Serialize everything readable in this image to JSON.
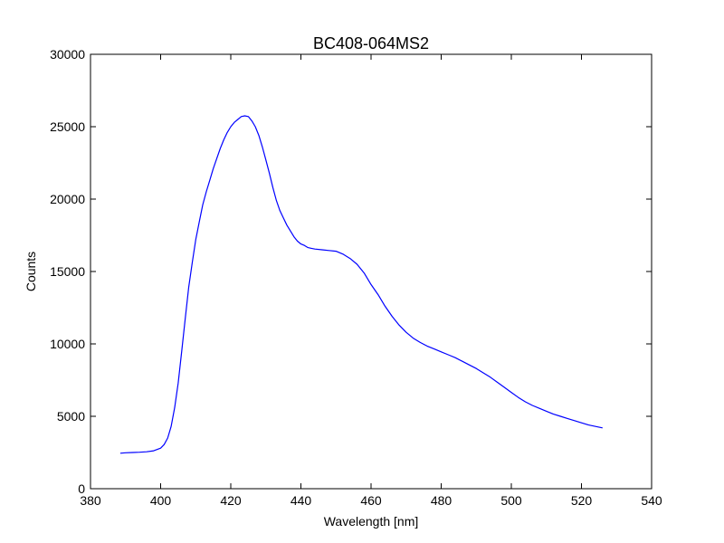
{
  "chart_data": {
    "type": "line",
    "title": "BC408-064MS2",
    "xlabel": "Wavelength [nm]",
    "ylabel": "Counts",
    "xlim": [
      380,
      540
    ],
    "ylim": [
      0,
      30000
    ],
    "xticks": [
      380,
      400,
      420,
      440,
      460,
      480,
      500,
      520,
      540
    ],
    "yticks": [
      0,
      5000,
      10000,
      15000,
      20000,
      25000,
      30000
    ],
    "grid": false,
    "series": [
      {
        "color": "#0000ff",
        "x": [
          388.5,
          390,
          392,
          394,
          396,
          398,
          400,
          401,
          402,
          403,
          404,
          405,
          406,
          407,
          408,
          409,
          410,
          411,
          412,
          413,
          414,
          415,
          416,
          417,
          418,
          419,
          420,
          421,
          422,
          423,
          424,
          425,
          426,
          427,
          428,
          429,
          430,
          431,
          432,
          433,
          434,
          435,
          436,
          437,
          438,
          439,
          440,
          441,
          442,
          443,
          444,
          446,
          448,
          450,
          452,
          454,
          456,
          458,
          460,
          462,
          464,
          466,
          468,
          470,
          472,
          474,
          476,
          478,
          480,
          482,
          484,
          486,
          488,
          490,
          492,
          494,
          496,
          498,
          500,
          502,
          504,
          506,
          508,
          510,
          512,
          514,
          516,
          518,
          520,
          522,
          524,
          526
        ],
        "y": [
          2450,
          2480,
          2500,
          2520,
          2550,
          2620,
          2800,
          3050,
          3500,
          4300,
          5600,
          7300,
          9500,
          11700,
          13900,
          15600,
          17200,
          18400,
          19600,
          20500,
          21300,
          22100,
          22800,
          23500,
          24100,
          24600,
          25000,
          25300,
          25500,
          25700,
          25750,
          25700,
          25400,
          25000,
          24400,
          23600,
          22700,
          21800,
          20800,
          19900,
          19200,
          18700,
          18200,
          17800,
          17400,
          17100,
          16900,
          16800,
          16650,
          16600,
          16550,
          16500,
          16450,
          16400,
          16200,
          15900,
          15500,
          14900,
          14100,
          13400,
          12600,
          11900,
          11300,
          10800,
          10400,
          10100,
          9850,
          9650,
          9450,
          9250,
          9050,
          8800,
          8550,
          8300,
          8000,
          7700,
          7350,
          7000,
          6650,
          6300,
          6000,
          5750,
          5550,
          5350,
          5150,
          5000,
          4850,
          4700,
          4550,
          4400,
          4300,
          4200
        ]
      }
    ]
  }
}
